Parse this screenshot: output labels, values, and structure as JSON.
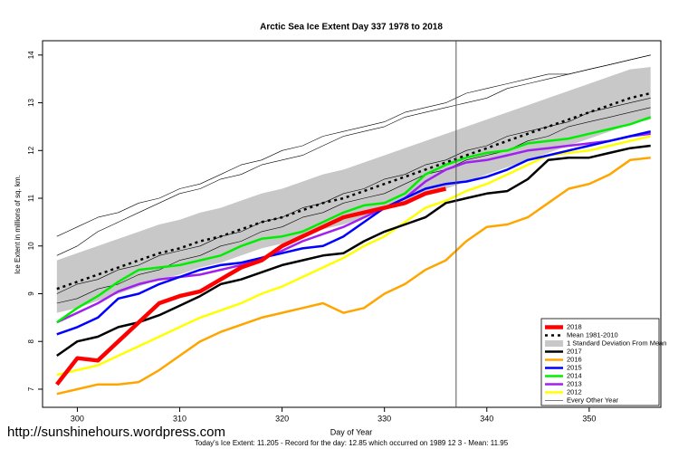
{
  "chart_data": {
    "type": "line",
    "title": "Arctic Sea Ice Extent Day 337 1978 to 2018",
    "x_label": "Day of Year",
    "y_label": "Ice Extent in millions of sq. km.",
    "footer": "Today's Ice Extent: 11.205  - Record for the day: 12.85 which occurred on 1989 12 3  - Mean: 11.95",
    "watermark": "http://sunshinehours.wordpress.com",
    "marker_x": 337,
    "xlim": [
      296.6,
      357
    ],
    "ylim": [
      6.62,
      14.3
    ],
    "xticks": [
      300,
      310,
      320,
      330,
      340,
      350
    ],
    "yticks": [
      7,
      8,
      9,
      10,
      11,
      12,
      13,
      14
    ],
    "legend": "bottom-right",
    "x": [
      298,
      300,
      302,
      304,
      306,
      308,
      310,
      312,
      314,
      316,
      318,
      320,
      322,
      324,
      326,
      328,
      330,
      332,
      334,
      336,
      338,
      340,
      342,
      344,
      346,
      348,
      350,
      352,
      354,
      356
    ],
    "series": [
      {
        "name": "2018",
        "color": "#ff0000",
        "width": 4.5,
        "values": [
          7.1,
          7.65,
          7.6,
          8.0,
          8.4,
          8.8,
          8.95,
          9.05,
          9.3,
          9.55,
          9.7,
          10.0,
          10.2,
          10.4,
          10.6,
          10.7,
          10.8,
          10.9,
          11.1,
          11.2,
          null,
          null,
          null,
          null,
          null,
          null,
          null,
          null,
          null,
          null
        ]
      },
      {
        "name": "Mean 1981-2010",
        "color": "#000000",
        "width": 2.5,
        "dash": "3 4",
        "values": [
          9.1,
          9.25,
          9.4,
          9.55,
          9.7,
          9.85,
          9.95,
          10.1,
          10.2,
          10.35,
          10.5,
          10.6,
          10.75,
          10.9,
          11.0,
          11.15,
          11.3,
          11.45,
          11.6,
          11.75,
          11.9,
          12.05,
          12.2,
          12.35,
          12.5,
          12.65,
          12.8,
          12.95,
          13.1,
          13.2
        ]
      },
      {
        "name": "1 Standard Deviation From Mean",
        "color": "#c8c8c8",
        "lower": [
          8.6,
          8.7,
          8.85,
          9.0,
          9.15,
          9.3,
          9.4,
          9.55,
          9.65,
          9.8,
          9.95,
          10.05,
          10.2,
          10.35,
          10.45,
          10.6,
          10.75,
          10.9,
          11.05,
          11.2,
          11.35,
          11.5,
          11.65,
          11.8,
          11.95,
          12.1,
          12.25,
          12.4,
          12.55,
          12.65
        ],
        "upper": [
          9.7,
          9.85,
          10.0,
          10.15,
          10.3,
          10.45,
          10.55,
          10.7,
          10.8,
          10.95,
          11.1,
          11.2,
          11.35,
          11.5,
          11.6,
          11.75,
          11.9,
          12.05,
          12.2,
          12.35,
          12.5,
          12.65,
          12.8,
          12.95,
          13.1,
          13.25,
          13.4,
          13.55,
          13.7,
          13.75
        ]
      },
      {
        "name": "2017",
        "color": "#000000",
        "width": 2.5,
        "values": [
          7.7,
          8.0,
          8.1,
          8.3,
          8.4,
          8.55,
          8.75,
          8.95,
          9.2,
          9.3,
          9.45,
          9.6,
          9.7,
          9.8,
          9.85,
          10.1,
          10.3,
          10.45,
          10.6,
          10.9,
          11.0,
          11.1,
          11.15,
          11.4,
          11.8,
          11.85,
          11.85,
          11.95,
          12.05,
          12.1
        ]
      },
      {
        "name": "2016",
        "color": "#ffa500",
        "width": 2.5,
        "values": [
          6.9,
          7.0,
          7.1,
          7.1,
          7.15,
          7.4,
          7.7,
          8.0,
          8.2,
          8.35,
          8.5,
          8.6,
          8.7,
          8.8,
          8.6,
          8.7,
          9.0,
          9.2,
          9.5,
          9.7,
          10.1,
          10.4,
          10.45,
          10.6,
          10.9,
          11.2,
          11.3,
          11.5,
          11.8,
          11.85
        ]
      },
      {
        "name": "2015",
        "color": "#0000ff",
        "width": 2.5,
        "values": [
          8.15,
          8.3,
          8.5,
          8.9,
          9.0,
          9.2,
          9.35,
          9.5,
          9.6,
          9.65,
          9.75,
          9.85,
          9.95,
          10.0,
          10.2,
          10.5,
          10.8,
          11.0,
          11.2,
          11.3,
          11.35,
          11.45,
          11.6,
          11.8,
          11.9,
          12.0,
          12.1,
          12.2,
          12.3,
          12.4
        ]
      },
      {
        "name": "2014",
        "color": "#00ee00",
        "width": 2.5,
        "values": [
          8.4,
          8.7,
          8.95,
          9.25,
          9.5,
          9.55,
          9.6,
          9.7,
          9.8,
          10.0,
          10.15,
          10.2,
          10.3,
          10.5,
          10.7,
          10.85,
          10.9,
          11.1,
          11.5,
          11.7,
          11.85,
          11.95,
          12.0,
          12.15,
          12.2,
          12.25,
          12.35,
          12.45,
          12.55,
          12.7
        ]
      },
      {
        "name": "2013",
        "color": "#a020f0",
        "width": 2.5,
        "values": [
          8.4,
          8.6,
          8.8,
          9.05,
          9.2,
          9.3,
          9.35,
          9.4,
          9.5,
          9.6,
          9.75,
          9.9,
          10.1,
          10.25,
          10.4,
          10.6,
          10.8,
          11.0,
          11.35,
          11.6,
          11.75,
          11.8,
          11.9,
          12.0,
          12.05,
          12.1,
          12.15,
          12.2,
          12.3,
          12.35
        ]
      },
      {
        "name": "2012",
        "color": "#ffff00",
        "width": 2.5,
        "values": [
          7.3,
          7.4,
          7.5,
          7.7,
          7.9,
          8.1,
          8.3,
          8.5,
          8.65,
          8.8,
          9.0,
          9.15,
          9.35,
          9.55,
          9.75,
          10.0,
          10.2,
          10.5,
          10.8,
          10.95,
          11.15,
          11.3,
          11.5,
          11.7,
          11.9,
          11.95,
          12.0,
          12.1,
          12.2,
          12.3
        ]
      },
      {
        "name": "Every Other Year",
        "color": "#000000",
        "width": 0.6,
        "lines": [
          [
            9.8,
            10.0,
            10.3,
            10.5,
            10.7,
            10.9,
            11.1,
            11.2,
            11.4,
            11.5,
            11.7,
            11.8,
            11.9,
            12.1,
            12.3,
            12.4,
            12.5,
            12.7,
            12.8,
            12.9,
            13.0,
            13.1,
            13.3,
            13.4,
            13.5,
            13.6,
            13.7,
            13.8,
            13.9,
            14.0
          ],
          [
            9.0,
            9.2,
            9.3,
            9.5,
            9.6,
            9.8,
            9.9,
            10.0,
            10.2,
            10.3,
            10.5,
            10.6,
            10.8,
            10.9,
            11.1,
            11.2,
            11.4,
            11.5,
            11.7,
            11.8,
            12.0,
            12.1,
            12.3,
            12.4,
            12.5,
            12.6,
            12.8,
            12.9,
            13.0,
            13.1
          ],
          [
            8.8,
            8.9,
            9.1,
            9.2,
            9.4,
            9.5,
            9.7,
            9.8,
            10.0,
            10.1,
            10.3,
            10.4,
            10.6,
            10.7,
            10.9,
            11.0,
            11.1,
            11.3,
            11.5,
            11.6,
            11.8,
            11.9,
            12.0,
            12.2,
            12.3,
            12.5,
            12.6,
            12.7,
            12.8,
            12.9
          ],
          [
            10.2,
            10.4,
            10.6,
            10.7,
            10.9,
            11.0,
            11.2,
            11.3,
            11.5,
            11.7,
            11.8,
            12.0,
            12.1,
            12.3,
            12.4,
            12.5,
            12.6,
            12.8,
            12.9,
            13.0,
            13.2,
            13.3,
            13.4,
            13.5,
            13.6,
            13.6,
            13.7,
            13.8,
            13.9,
            14.0
          ]
        ]
      }
    ]
  }
}
